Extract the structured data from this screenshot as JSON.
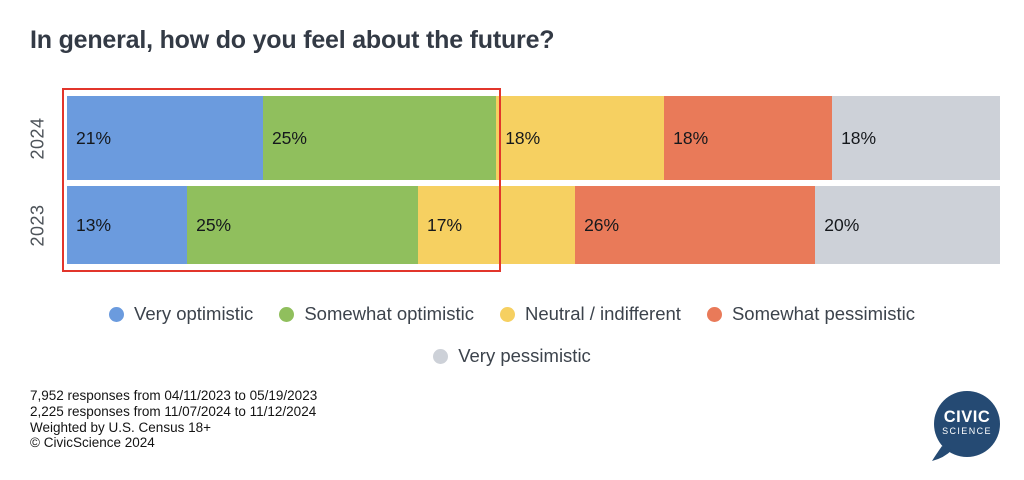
{
  "title": "In general, how do you feel about the future?",
  "chart_data": {
    "type": "bar",
    "orientation": "horizontal-stacked",
    "categories": [
      "2024",
      "2023"
    ],
    "segments": [
      "Very optimistic",
      "Somewhat optimistic",
      "Neutral / indifferent",
      "Somewhat pessimistic",
      "Very pessimistic"
    ],
    "colors": [
      "#6b9bde",
      "#90bf5d",
      "#f6d061",
      "#e97a59",
      "#cdd1d8"
    ],
    "series": [
      {
        "name": "2024",
        "values": [
          21,
          25,
          18,
          18,
          18
        ]
      },
      {
        "name": "2023",
        "values": [
          13,
          25,
          17,
          26,
          20
        ]
      }
    ],
    "value_suffix": "%",
    "xlim": [
      0,
      100
    ],
    "grid": false,
    "legend_position": "bottom",
    "highlight": {
      "covers": [
        "Very optimistic",
        "Somewhat optimistic"
      ],
      "to_percent": 46,
      "color": "#e2352b"
    }
  },
  "legend": {
    "row1": [
      {
        "label": "Very optimistic",
        "color": "#6b9bde"
      },
      {
        "label": "Somewhat optimistic",
        "color": "#90bf5d"
      },
      {
        "label": "Neutral / indifferent",
        "color": "#f6d061"
      },
      {
        "label": "Somewhat pessimistic",
        "color": "#e97a59"
      }
    ],
    "row2": [
      {
        "label": "Very pessimistic",
        "color": "#cdd1d8"
      }
    ]
  },
  "footer": {
    "lines": [
      "7,952 responses from 04/11/2023 to 05/19/2023",
      "2,225 responses from 11/07/2024 to 11/12/2024",
      "Weighted by U.S. Census 18+",
      "© CivicScience 2024"
    ]
  },
  "logo": {
    "line1": "CIVIC",
    "line2": "SCIENCE",
    "color": "#254a73"
  }
}
